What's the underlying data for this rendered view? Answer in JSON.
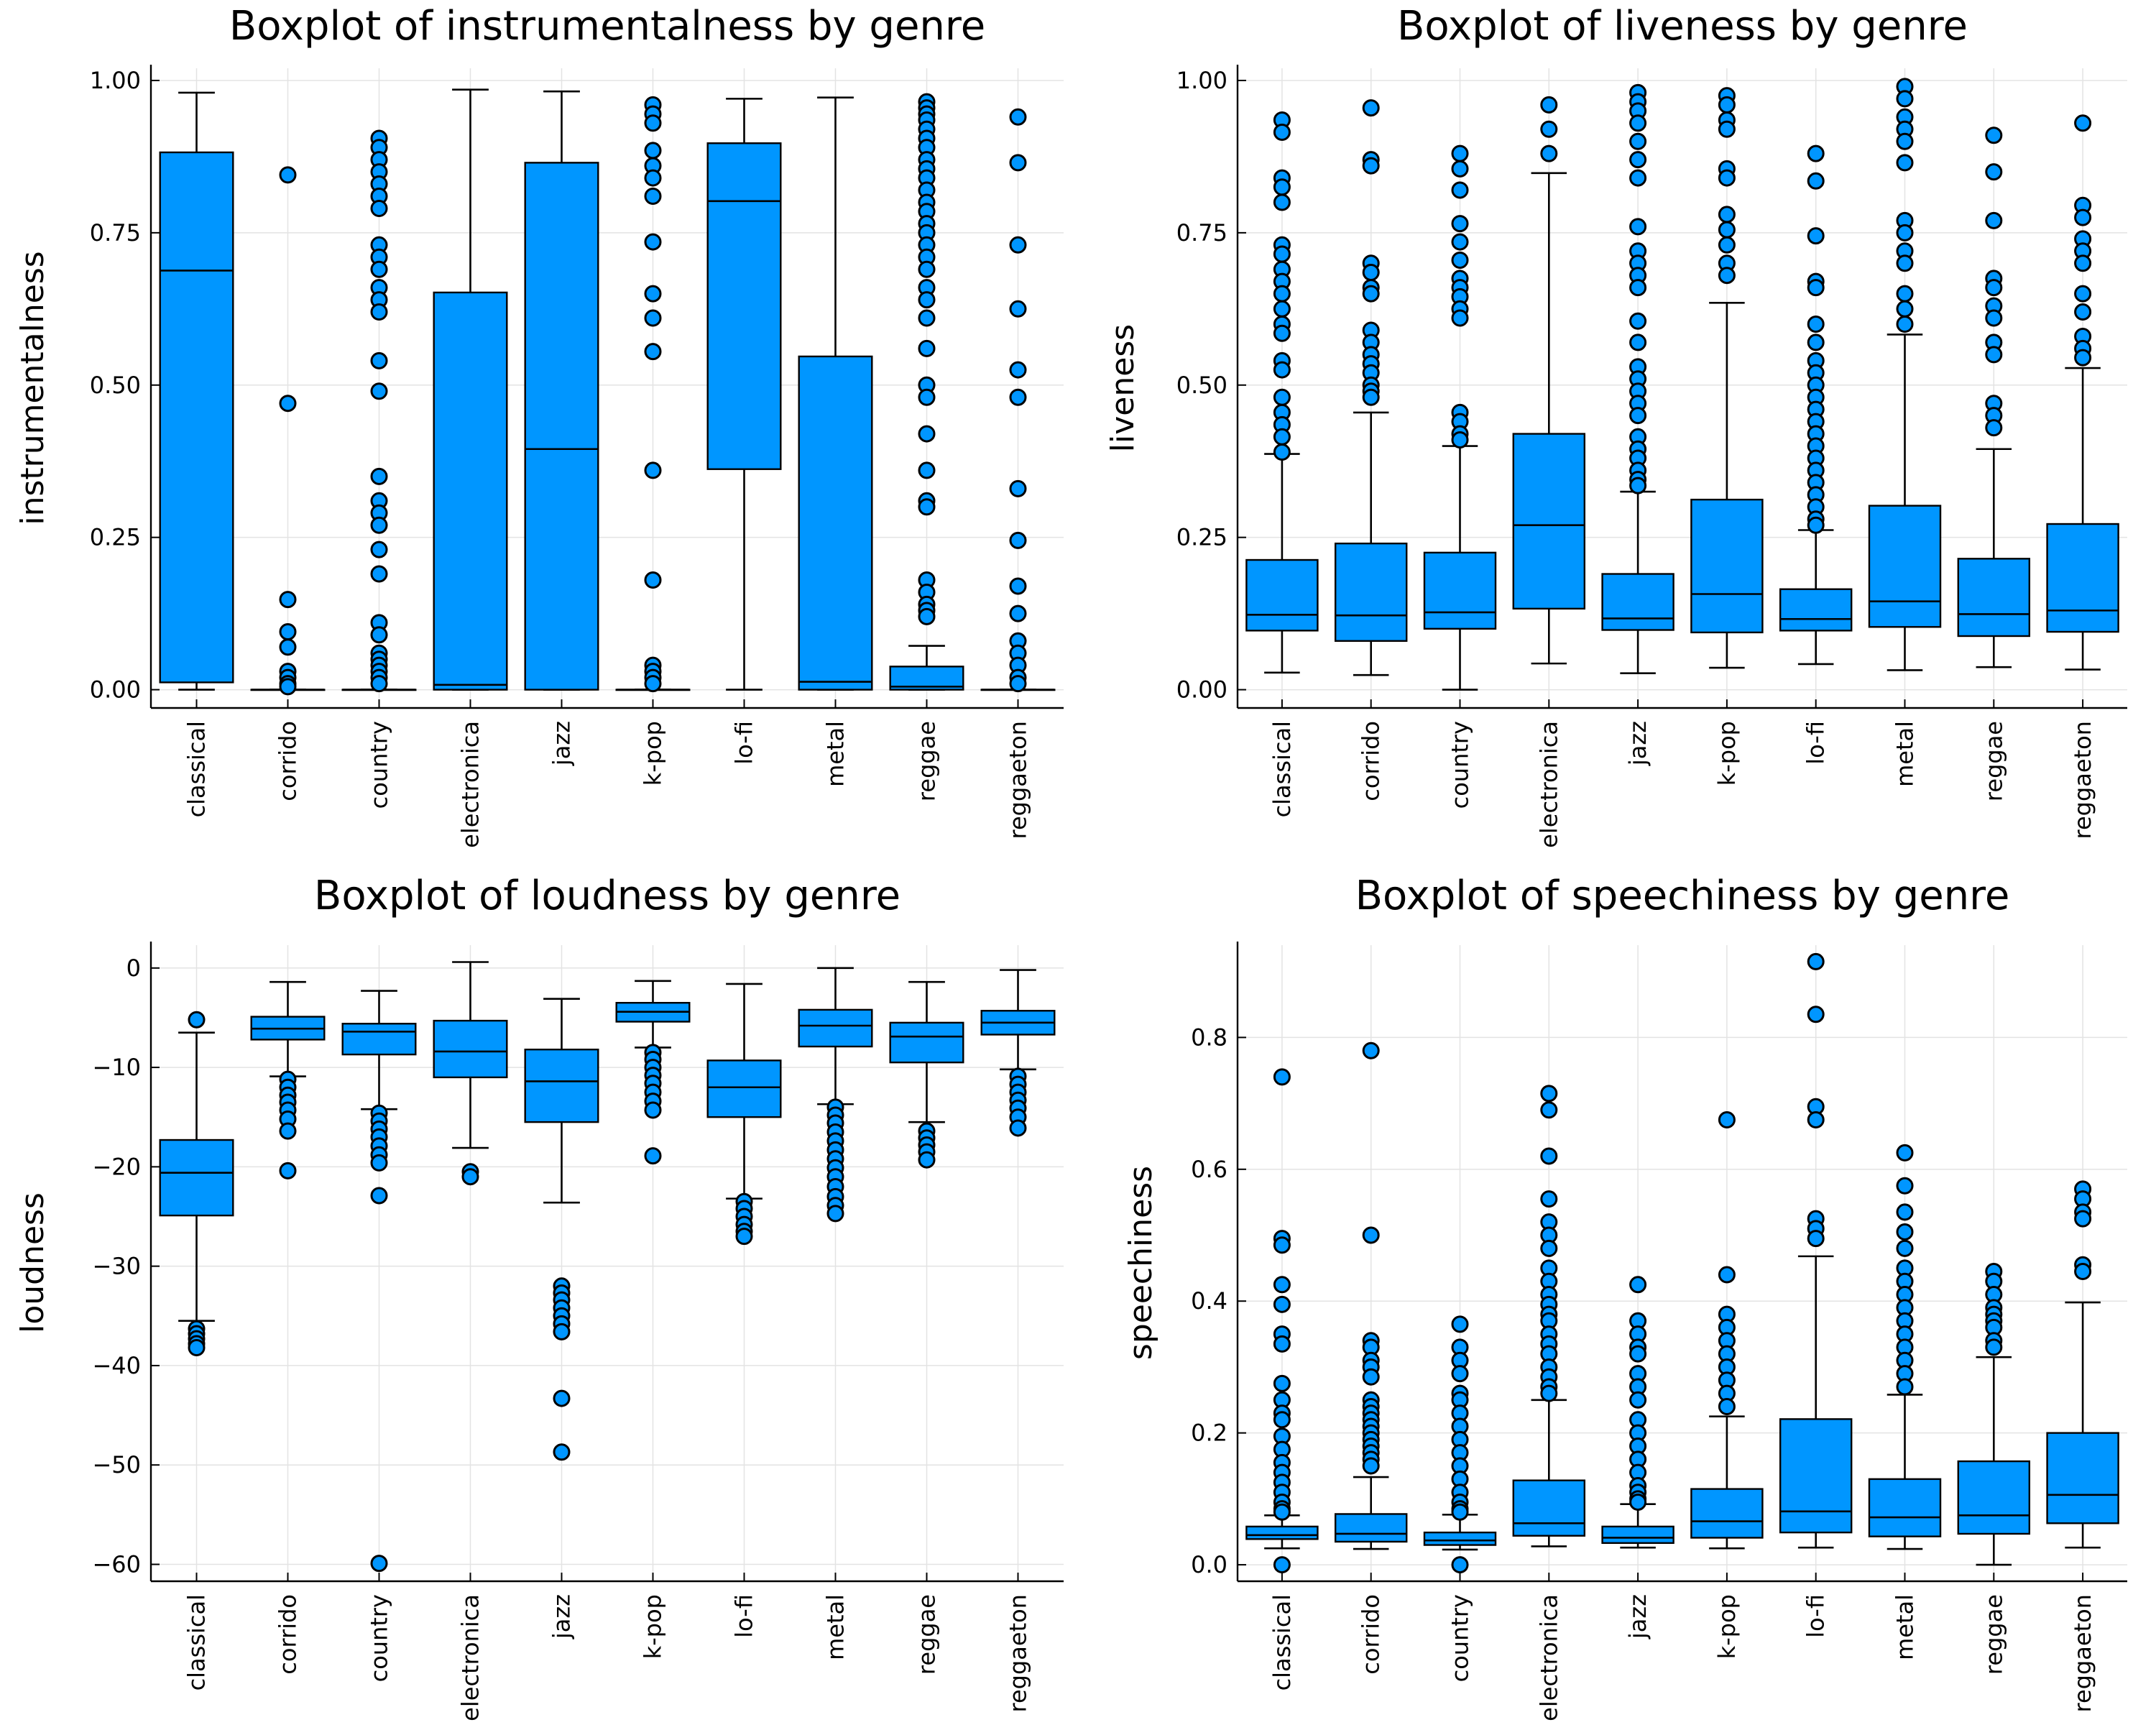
{
  "colors": {
    "box_fill": "#0096ff",
    "outline": "#000000",
    "grid": "#e3e3e3"
  },
  "chart_data": [
    {
      "type": "boxplot",
      "title": "Boxplot of instrumentalness by genre",
      "xlabel": "",
      "ylabel": "instrumentalness",
      "ylim": [
        -0.03,
        1.02
      ],
      "yticks": [
        0.0,
        0.25,
        0.5,
        0.75,
        1.0
      ],
      "ytick_labels": [
        "0.00",
        "0.25",
        "0.50",
        "0.75",
        "1.00"
      ],
      "grid": true,
      "categories": [
        "classical",
        "corrido",
        "country",
        "electronica",
        "jazz",
        "k-pop",
        "lo-fi",
        "metal",
        "reggae",
        "reggaeton"
      ],
      "boxes": [
        {
          "min": 0.0,
          "q1": 0.012,
          "median": 0.688,
          "q3": 0.882,
          "max": 0.98,
          "outliers": []
        },
        {
          "min": 0.0,
          "q1": 0.0,
          "median": 0.0,
          "q3": 0.0,
          "max": 0.0,
          "outliers": [
            0.845,
            0.47,
            0.148,
            0.095,
            0.07,
            0.03,
            0.02,
            0.01,
            0.005
          ]
        },
        {
          "min": 0.0,
          "q1": 0.0,
          "median": 0.0,
          "q3": 0.0,
          "max": 0.0,
          "outliers": [
            0.905,
            0.89,
            0.87,
            0.85,
            0.83,
            0.81,
            0.79,
            0.73,
            0.71,
            0.69,
            0.66,
            0.64,
            0.62,
            0.54,
            0.49,
            0.35,
            0.31,
            0.29,
            0.27,
            0.23,
            0.19,
            0.11,
            0.09,
            0.06,
            0.05,
            0.04,
            0.03,
            0.02,
            0.01
          ]
        },
        {
          "min": 0.0,
          "q1": 0.0,
          "median": 0.008,
          "q3": 0.652,
          "max": 0.985,
          "outliers": []
        },
        {
          "min": 0.0,
          "q1": 0.0,
          "median": 0.395,
          "q3": 0.865,
          "max": 0.982,
          "outliers": []
        },
        {
          "min": 0.0,
          "q1": 0.0,
          "median": 0.0,
          "q3": 0.0,
          "max": 0.0,
          "outliers": [
            0.96,
            0.945,
            0.93,
            0.885,
            0.86,
            0.84,
            0.81,
            0.735,
            0.65,
            0.61,
            0.555,
            0.36,
            0.18,
            0.04,
            0.03,
            0.02,
            0.01
          ]
        },
        {
          "min": 0.0,
          "q1": 0.362,
          "median": 0.802,
          "q3": 0.897,
          "max": 0.97,
          "outliers": []
        },
        {
          "min": 0.0,
          "q1": 0.0,
          "median": 0.013,
          "q3": 0.547,
          "max": 0.972,
          "outliers": []
        },
        {
          "min": 0.0,
          "q1": 0.0,
          "median": 0.005,
          "q3": 0.038,
          "max": 0.072,
          "outliers": [
            0.965,
            0.955,
            0.945,
            0.935,
            0.92,
            0.905,
            0.89,
            0.87,
            0.855,
            0.84,
            0.82,
            0.8,
            0.785,
            0.765,
            0.75,
            0.73,
            0.71,
            0.69,
            0.66,
            0.64,
            0.61,
            0.56,
            0.5,
            0.48,
            0.42,
            0.36,
            0.31,
            0.3,
            0.18,
            0.16,
            0.14,
            0.13,
            0.12
          ]
        },
        {
          "min": 0.0,
          "q1": 0.0,
          "median": 0.0,
          "q3": 0.0,
          "max": 0.0,
          "outliers": [
            0.94,
            0.865,
            0.73,
            0.625,
            0.525,
            0.48,
            0.33,
            0.245,
            0.17,
            0.125,
            0.08,
            0.06,
            0.04,
            0.02,
            0.01
          ]
        }
      ]
    },
    {
      "type": "boxplot",
      "title": "Boxplot of liveness by genre",
      "xlabel": "",
      "ylabel": "liveness",
      "ylim": [
        -0.03,
        1.02
      ],
      "yticks": [
        0.0,
        0.25,
        0.5,
        0.75,
        1.0
      ],
      "ytick_labels": [
        "0.00",
        "0.25",
        "0.50",
        "0.75",
        "1.00"
      ],
      "grid": true,
      "categories": [
        "classical",
        "corrido",
        "country",
        "electronica",
        "jazz",
        "k-pop",
        "lo-fi",
        "metal",
        "reggae",
        "reggaeton"
      ],
      "boxes": [
        {
          "min": 0.028,
          "q1": 0.097,
          "median": 0.123,
          "q3": 0.213,
          "max": 0.387,
          "outliers": [
            0.935,
            0.915,
            0.84,
            0.825,
            0.8,
            0.73,
            0.715,
            0.69,
            0.67,
            0.65,
            0.625,
            0.6,
            0.585,
            0.54,
            0.525,
            0.48,
            0.455,
            0.435,
            0.415,
            0.39
          ]
        },
        {
          "min": 0.024,
          "q1": 0.08,
          "median": 0.122,
          "q3": 0.24,
          "max": 0.455,
          "outliers": [
            0.955,
            0.87,
            0.86,
            0.7,
            0.685,
            0.66,
            0.65,
            0.59,
            0.57,
            0.55,
            0.535,
            0.52,
            0.5,
            0.49,
            0.48
          ]
        },
        {
          "min": 0.0,
          "q1": 0.1,
          "median": 0.127,
          "q3": 0.225,
          "max": 0.4,
          "outliers": [
            0.88,
            0.855,
            0.82,
            0.765,
            0.735,
            0.705,
            0.675,
            0.66,
            0.645,
            0.625,
            0.61,
            0.455,
            0.44,
            0.42,
            0.41
          ]
        },
        {
          "min": 0.043,
          "q1": 0.133,
          "median": 0.27,
          "q3": 0.42,
          "max": 0.848,
          "outliers": [
            0.96,
            0.92,
            0.88
          ]
        },
        {
          "min": 0.027,
          "q1": 0.098,
          "median": 0.117,
          "q3": 0.19,
          "max": 0.325,
          "outliers": [
            0.98,
            0.965,
            0.95,
            0.93,
            0.9,
            0.87,
            0.84,
            0.76,
            0.72,
            0.7,
            0.68,
            0.66,
            0.605,
            0.57,
            0.53,
            0.51,
            0.49,
            0.47,
            0.45,
            0.415,
            0.395,
            0.38,
            0.36,
            0.345,
            0.335
          ]
        },
        {
          "min": 0.036,
          "q1": 0.094,
          "median": 0.157,
          "q3": 0.312,
          "max": 0.635,
          "outliers": [
            0.975,
            0.96,
            0.935,
            0.92,
            0.855,
            0.84,
            0.78,
            0.755,
            0.73,
            0.7,
            0.68
          ]
        },
        {
          "min": 0.042,
          "q1": 0.097,
          "median": 0.116,
          "q3": 0.165,
          "max": 0.262,
          "outliers": [
            0.88,
            0.835,
            0.745,
            0.67,
            0.66,
            0.6,
            0.57,
            0.54,
            0.52,
            0.5,
            0.48,
            0.46,
            0.44,
            0.42,
            0.4,
            0.38,
            0.36,
            0.34,
            0.32,
            0.3,
            0.28,
            0.27
          ]
        },
        {
          "min": 0.032,
          "q1": 0.103,
          "median": 0.145,
          "q3": 0.302,
          "max": 0.583,
          "outliers": [
            0.99,
            0.97,
            0.94,
            0.92,
            0.9,
            0.865,
            0.77,
            0.75,
            0.72,
            0.7,
            0.65,
            0.625,
            0.6
          ]
        },
        {
          "min": 0.037,
          "q1": 0.088,
          "median": 0.124,
          "q3": 0.215,
          "max": 0.395,
          "outliers": [
            0.91,
            0.85,
            0.77,
            0.675,
            0.66,
            0.63,
            0.61,
            0.57,
            0.55,
            0.47,
            0.45,
            0.43
          ]
        },
        {
          "min": 0.033,
          "q1": 0.095,
          "median": 0.13,
          "q3": 0.272,
          "max": 0.528,
          "outliers": [
            0.93,
            0.795,
            0.775,
            0.74,
            0.72,
            0.7,
            0.65,
            0.62,
            0.58,
            0.56,
            0.545
          ]
        }
      ]
    },
    {
      "type": "boxplot",
      "title": "Boxplot of loudness by genre",
      "xlabel": "",
      "ylabel": "loudness",
      "ylim": [
        -61.7,
        2.3
      ],
      "yticks": [
        0,
        -10,
        -20,
        -30,
        -40,
        -50,
        -60
      ],
      "ytick_labels": [
        "0",
        "−10",
        "−20",
        "−30",
        "−40",
        "−50",
        "−60"
      ],
      "grid": true,
      "categories": [
        "classical",
        "corrido",
        "country",
        "electronica",
        "jazz",
        "k-pop",
        "lo-fi",
        "metal",
        "reggae",
        "reggaeton"
      ],
      "boxes": [
        {
          "min": -35.5,
          "q1": -24.9,
          "median": -20.6,
          "q3": -17.3,
          "max": -6.5,
          "outliers": [
            -5.2,
            -36.3,
            -36.8,
            -37.3,
            -37.8,
            -38.2
          ]
        },
        {
          "min": -10.9,
          "q1": -7.2,
          "median": -6.1,
          "q3": -4.9,
          "max": -1.4,
          "outliers": [
            -11.2,
            -12.0,
            -12.8,
            -13.5,
            -14.3,
            -15.2,
            -16.4,
            -20.4
          ]
        },
        {
          "min": -14.2,
          "q1": -8.7,
          "median": -6.4,
          "q3": -5.6,
          "max": -2.3,
          "outliers": [
            -14.6,
            -15.4,
            -16.2,
            -17.0,
            -17.9,
            -18.8,
            -19.6,
            -22.9,
            -59.9
          ]
        },
        {
          "min": -18.1,
          "q1": -11.0,
          "median": -8.4,
          "q3": -5.3,
          "max": 0.6,
          "outliers": [
            -20.5,
            -21.0
          ]
        },
        {
          "min": -23.6,
          "q1": -15.5,
          "median": -11.4,
          "q3": -8.2,
          "max": -3.1,
          "outliers": [
            -32.0,
            -32.7,
            -33.4,
            -34.2,
            -35.0,
            -35.8,
            -36.6,
            -43.3,
            -48.7
          ]
        },
        {
          "min": -8.0,
          "q1": -5.4,
          "median": -4.4,
          "q3": -3.5,
          "max": -1.3,
          "outliers": [
            -8.5,
            -9.2,
            -10.0,
            -10.8,
            -11.6,
            -12.5,
            -13.4,
            -14.3,
            -18.9
          ]
        },
        {
          "min": -23.2,
          "q1": -15.0,
          "median": -12.0,
          "q3": -9.3,
          "max": -1.6,
          "outliers": [
            -23.5,
            -24.2,
            -25.0,
            -25.8,
            -26.5,
            -27.0
          ]
        },
        {
          "min": -13.7,
          "q1": -7.9,
          "median": -5.8,
          "q3": -4.2,
          "max": 0.0,
          "outliers": [
            -14.0,
            -14.8,
            -15.6,
            -16.5,
            -17.4,
            -18.3,
            -19.2,
            -20.1,
            -21.0,
            -22.0,
            -23.0,
            -23.9,
            -24.7
          ]
        },
        {
          "min": -15.5,
          "q1": -9.5,
          "median": -6.9,
          "q3": -5.5,
          "max": -1.4,
          "outliers": [
            -16.4,
            -17.1,
            -17.8,
            -18.5,
            -19.3
          ]
        },
        {
          "min": -10.2,
          "q1": -6.7,
          "median": -5.5,
          "q3": -4.3,
          "max": -0.2,
          "outliers": [
            -10.9,
            -11.7,
            -12.5,
            -13.3,
            -14.1,
            -15.0,
            -16.1
          ]
        }
      ]
    },
    {
      "type": "boxplot",
      "title": "Boxplot of speechiness by genre",
      "xlabel": "",
      "ylabel": "speechiness",
      "ylim": [
        -0.025,
        0.94
      ],
      "yticks": [
        0.0,
        0.2,
        0.4,
        0.6,
        0.8
      ],
      "ytick_labels": [
        "0.0",
        "0.2",
        "0.4",
        "0.6",
        "0.8"
      ],
      "grid": true,
      "categories": [
        "classical",
        "corrido",
        "country",
        "electronica",
        "jazz",
        "k-pop",
        "lo-fi",
        "metal",
        "reggae",
        "reggaeton"
      ],
      "boxes": [
        {
          "min": 0.025,
          "q1": 0.039,
          "median": 0.045,
          "q3": 0.058,
          "max": 0.075,
          "outliers": [
            0.74,
            0.495,
            0.485,
            0.425,
            0.395,
            0.35,
            0.335,
            0.275,
            0.25,
            0.23,
            0.22,
            0.195,
            0.175,
            0.155,
            0.14,
            0.125,
            0.11,
            0.095,
            0.085,
            0.08,
            0.0
          ]
        },
        {
          "min": 0.024,
          "q1": 0.035,
          "median": 0.047,
          "q3": 0.077,
          "max": 0.133,
          "outliers": [
            0.78,
            0.5,
            0.34,
            0.33,
            0.31,
            0.3,
            0.285,
            0.25,
            0.24,
            0.23,
            0.22,
            0.21,
            0.2,
            0.19,
            0.18,
            0.17,
            0.16,
            0.15
          ]
        },
        {
          "min": 0.023,
          "q1": 0.03,
          "median": 0.037,
          "q3": 0.049,
          "max": 0.076,
          "outliers": [
            0.365,
            0.33,
            0.31,
            0.29,
            0.26,
            0.25,
            0.23,
            0.21,
            0.19,
            0.17,
            0.15,
            0.13,
            0.11,
            0.095,
            0.085,
            0.08,
            0.0
          ]
        },
        {
          "min": 0.028,
          "q1": 0.044,
          "median": 0.063,
          "q3": 0.128,
          "max": 0.25,
          "outliers": [
            0.715,
            0.69,
            0.62,
            0.555,
            0.52,
            0.5,
            0.48,
            0.45,
            0.43,
            0.41,
            0.395,
            0.38,
            0.37,
            0.35,
            0.335,
            0.32,
            0.3,
            0.285,
            0.27,
            0.26
          ]
        },
        {
          "min": 0.026,
          "q1": 0.033,
          "median": 0.041,
          "q3": 0.058,
          "max": 0.092,
          "outliers": [
            0.425,
            0.37,
            0.35,
            0.33,
            0.32,
            0.29,
            0.27,
            0.25,
            0.22,
            0.2,
            0.18,
            0.16,
            0.14,
            0.12,
            0.11,
            0.1,
            0.095
          ]
        },
        {
          "min": 0.025,
          "q1": 0.041,
          "median": 0.066,
          "q3": 0.115,
          "max": 0.225,
          "outliers": [
            0.675,
            0.44,
            0.38,
            0.36,
            0.34,
            0.32,
            0.3,
            0.28,
            0.26,
            0.24
          ]
        },
        {
          "min": 0.026,
          "q1": 0.049,
          "median": 0.081,
          "q3": 0.221,
          "max": 0.468,
          "outliers": [
            0.915,
            0.835,
            0.695,
            0.675,
            0.525,
            0.51,
            0.495
          ]
        },
        {
          "min": 0.024,
          "q1": 0.043,
          "median": 0.072,
          "q3": 0.13,
          "max": 0.258,
          "outliers": [
            0.625,
            0.575,
            0.535,
            0.505,
            0.48,
            0.45,
            0.43,
            0.41,
            0.39,
            0.37,
            0.35,
            0.33,
            0.31,
            0.29,
            0.27
          ]
        },
        {
          "min": 0.0,
          "q1": 0.047,
          "median": 0.075,
          "q3": 0.157,
          "max": 0.315,
          "outliers": [
            0.445,
            0.43,
            0.41,
            0.39,
            0.38,
            0.37,
            0.36,
            0.34,
            0.33
          ]
        },
        {
          "min": 0.026,
          "q1": 0.063,
          "median": 0.106,
          "q3": 0.2,
          "max": 0.398,
          "outliers": [
            0.57,
            0.555,
            0.535,
            0.525,
            0.455,
            0.445
          ]
        }
      ]
    }
  ]
}
